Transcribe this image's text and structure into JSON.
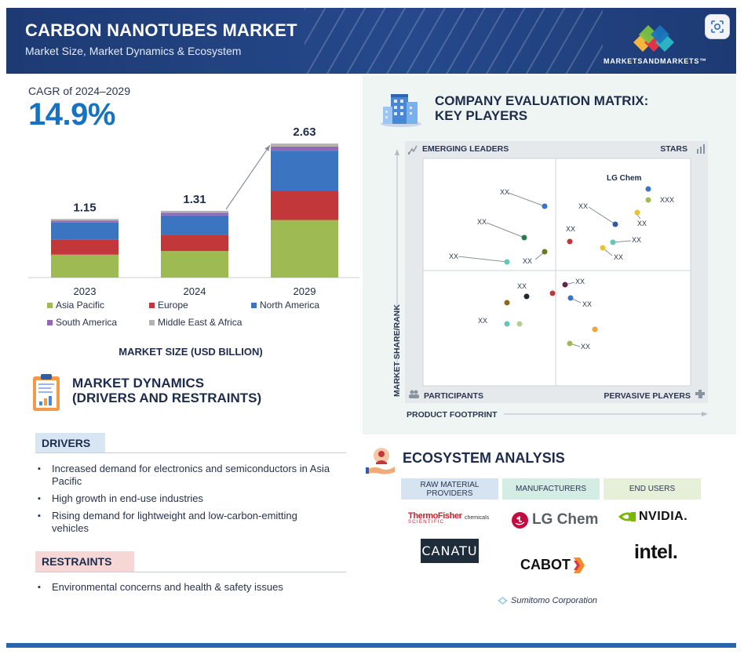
{
  "header": {
    "title": "CARBON NANOTUBES MARKET",
    "subtitle": "Market Size, Market Dynamics & Ecosystem",
    "logo_text": "MARKETSANDMARKETS™"
  },
  "cagr": {
    "label": "CAGR of 2024–2029",
    "value": "14.9%"
  },
  "chart_data": {
    "type": "bar",
    "stacked": true,
    "title": "",
    "xlabel": "MARKET SIZE (USD BILLION)",
    "ylabel": "",
    "categories": [
      "2023",
      "2024",
      "2029"
    ],
    "totals": [
      1.15,
      1.31,
      2.63
    ],
    "total_labels": [
      "1.15",
      "1.31",
      "2.63"
    ],
    "series": [
      {
        "name": "Asia Pacific",
        "color": "#9dbb52",
        "values": [
          0.45,
          0.52,
          1.13
        ]
      },
      {
        "name": "Europe",
        "color": "#c2383a",
        "values": [
          0.29,
          0.32,
          0.57
        ]
      },
      {
        "name": "North America",
        "color": "#3b75c1",
        "values": [
          0.34,
          0.38,
          0.79
        ]
      },
      {
        "name": "South America",
        "color": "#9368b7",
        "values": [
          0.04,
          0.05,
          0.08
        ]
      },
      {
        "name": "Middle East & Africa",
        "color": "#b3b3b3",
        "values": [
          0.03,
          0.04,
          0.06
        ]
      }
    ],
    "legend_position": "bottom",
    "arrow": "2024 to 2029 growth arrow"
  },
  "matrix": {
    "title_line1": "COMPANY EVALUATION MATRIX:",
    "title_line2": "KEY PLAYERS",
    "quadrants": {
      "top_left": "EMERGING LEADERS",
      "top_right": "STARS",
      "bottom_left": "PARTICIPANTS",
      "bottom_right": "PERVASIVE PLAYERS"
    },
    "y_axis_label": "MARKET SHARE/RANK",
    "x_axis_label": "PRODUCT FOOTPRINT",
    "player_labels": [
      "XX",
      "XX",
      "XX",
      "XX",
      "LG Chem",
      "XXX",
      "XX",
      "XX",
      "XX",
      "XX",
      "XX",
      "XX",
      "XX",
      "XX",
      "XX",
      "XX"
    ]
  },
  "dynamics": {
    "title_line1": "MARKET DYNAMICS",
    "title_line2": "(DRIVERS AND RESTRAINTS)",
    "drivers_label": "DRIVERS",
    "drivers": [
      "Increased demand for electronics and semiconductors in Asia Pacific",
      "High growth in end-use industries",
      "Rising demand for lightweight and low-carbon-emitting vehicles"
    ],
    "restraints_label": "RESTRAINTS",
    "restraints": [
      "Environmental concerns and health & safety issues"
    ]
  },
  "ecosystem": {
    "title": "ECOSYSTEM ANALYSIS",
    "columns": [
      "RAW MATERIAL PROVIDERS",
      "MANUFACTURERS",
      "END USERS"
    ],
    "logos": {
      "thermo_line1": "ThermoFisher",
      "thermo_line2": "SCIENTIFIC",
      "thermo_line3": "chemicals",
      "lgchem": "LG Chem",
      "nvidia": "NVIDIA.",
      "canatu": "CANATU",
      "cabot": "CABOT",
      "intel": "intel.",
      "sumitomo": "Sumitomo Corporation"
    }
  },
  "colors": {
    "header_bg": "#1d3a73",
    "accent_blue": "#1673c2",
    "drivers_tab": "#d8e6f3",
    "restraints_tab": "#f6d7d5",
    "matrix_panel": "#eef5f2"
  },
  "icons": [
    "image-search-icon",
    "building-icon",
    "clipboard-chart-icon",
    "hand-person-icon"
  ]
}
